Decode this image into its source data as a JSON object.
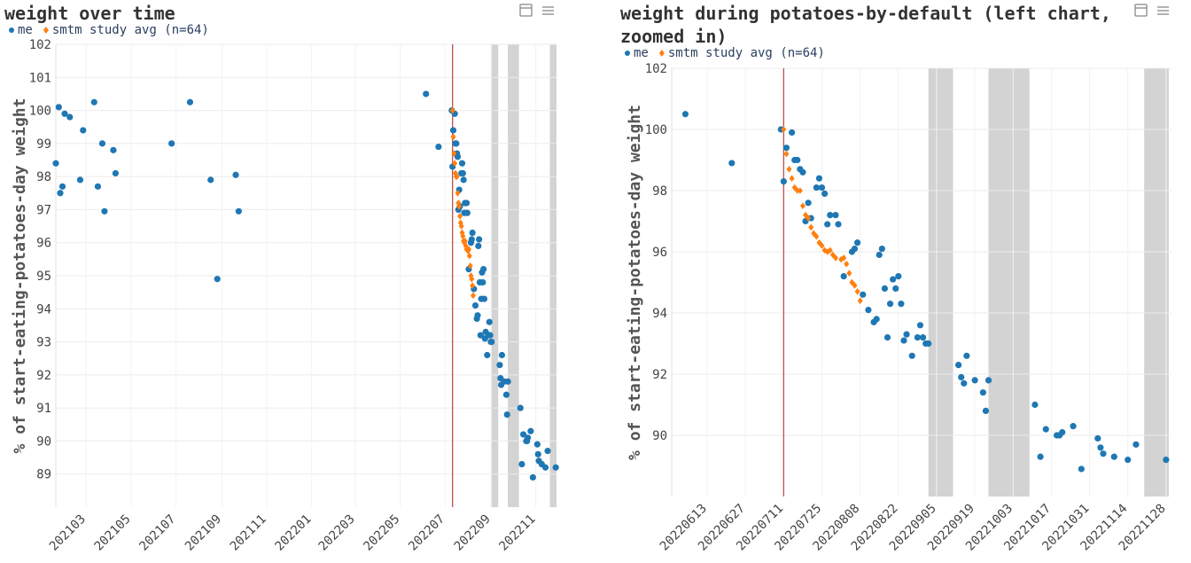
{
  "chart_data": [
    {
      "type": "scatter",
      "title": "weight over time",
      "y_label": "% of start-eating-potatoes-day weight",
      "xlim": [
        "2021-01-19",
        "2022-11-29"
      ],
      "xticks": [
        {
          "value": "2021-03-01",
          "label": "202103"
        },
        {
          "value": "2021-05-01",
          "label": "202105"
        },
        {
          "value": "2021-07-01",
          "label": "202107"
        },
        {
          "value": "2021-09-01",
          "label": "202109"
        },
        {
          "value": "2021-11-01",
          "label": "202111"
        },
        {
          "value": "2022-01-01",
          "label": "202201"
        },
        {
          "value": "2022-03-01",
          "label": "202203"
        },
        {
          "value": "2022-05-01",
          "label": "202205"
        },
        {
          "value": "2022-07-01",
          "label": "202207"
        },
        {
          "value": "2022-09-01",
          "label": "202209"
        },
        {
          "value": "2022-11-01",
          "label": "202211"
        }
      ],
      "ylim": [
        88,
        102
      ],
      "yticks": [
        89,
        90,
        91,
        92,
        93,
        94,
        95,
        96,
        97,
        98,
        99,
        100,
        101,
        102
      ],
      "grid": true,
      "vline": "2022-07-11",
      "vline_color": "#c0504d",
      "shade_color": "#d3d3d3",
      "shaded_ranges": [
        [
          "2022-09-02",
          "2022-09-11"
        ],
        [
          "2022-09-24",
          "2022-10-09"
        ],
        [
          "2022-11-20",
          "2022-11-29"
        ]
      ],
      "series": [
        {
          "name": "me",
          "color": "#1f77b4",
          "marker": "circle",
          "x": [
            "2021-01-19",
            "2021-01-23",
            "2021-01-25",
            "2021-01-28",
            "2021-01-31",
            "2021-02-07",
            "2021-02-21",
            "2021-02-25",
            "2021-03-12",
            "2021-03-17",
            "2021-03-23",
            "2021-03-26",
            "2021-04-07",
            "2021-04-10",
            "2021-06-25",
            "2021-07-20",
            "2021-08-17",
            "2021-08-26",
            "2021-09-20",
            "2021-09-24",
            "2022-06-05",
            "2022-06-22",
            "2022-07-10",
            "2022-07-11",
            "2022-07-12",
            "2022-07-14",
            "2022-07-15",
            "2022-07-16",
            "2022-07-17",
            "2022-07-18",
            "2022-07-19",
            "2022-07-20",
            "2022-07-21",
            "2022-07-23",
            "2022-07-24",
            "2022-07-25",
            "2022-07-26",
            "2022-07-27",
            "2022-07-28",
            "2022-07-30",
            "2022-07-31",
            "2022-08-02",
            "2022-08-05",
            "2022-08-06",
            "2022-08-07",
            "2022-08-09",
            "2022-08-11",
            "2022-08-13",
            "2022-08-14",
            "2022-08-15",
            "2022-08-16",
            "2022-08-17",
            "2022-08-18",
            "2022-08-19",
            "2022-08-20",
            "2022-08-21",
            "2022-08-22",
            "2022-08-23",
            "2022-08-24",
            "2022-08-25",
            "2022-08-27",
            "2022-08-29",
            "2022-08-30",
            "2022-08-31",
            "2022-09-01",
            "2022-09-02",
            "2022-09-13",
            "2022-09-14",
            "2022-09-15",
            "2022-09-16",
            "2022-09-19",
            "2022-09-22",
            "2022-09-23",
            "2022-09-24",
            "2022-10-11",
            "2022-10-13",
            "2022-10-15",
            "2022-10-19",
            "2022-10-20",
            "2022-10-21",
            "2022-10-25",
            "2022-10-28",
            "2022-11-03",
            "2022-11-04",
            "2022-11-05",
            "2022-11-09",
            "2022-11-14",
            "2022-11-17",
            "2022-11-28"
          ],
          "values": [
            98.4,
            100.1,
            97.5,
            97.7,
            99.9,
            99.8,
            97.9,
            99.4,
            100.25,
            97.7,
            99.0,
            96.95,
            98.8,
            98.1,
            99.0,
            100.25,
            97.9,
            94.9,
            98.05,
            96.95,
            100.5,
            98.9,
            100.0,
            98.3,
            99.4,
            99.9,
            99.0,
            99.0,
            98.7,
            98.6,
            97.0,
            97.6,
            97.1,
            98.1,
            98.4,
            98.1,
            97.9,
            96.9,
            97.2,
            97.2,
            96.9,
            95.2,
            96.0,
            96.1,
            96.3,
            94.6,
            94.1,
            93.7,
            93.8,
            95.9,
            96.1,
            94.8,
            93.2,
            94.3,
            95.1,
            94.8,
            95.2,
            94.3,
            93.1,
            93.3,
            92.6,
            93.2,
            93.6,
            93.2,
            93.0,
            93.0,
            92.3,
            91.9,
            91.7,
            92.6,
            91.8,
            91.4,
            90.8,
            91.8,
            91.0,
            89.3,
            90.2,
            90.0,
            90.0,
            90.1,
            90.3,
            88.9,
            89.9,
            89.6,
            89.4,
            89.3,
            89.2,
            89.7,
            89.2
          ]
        },
        {
          "name": "smtm study avg (n=64)",
          "color": "#ff7f0e",
          "marker": "diamond",
          "x": [
            "2022-07-11",
            "2022-07-12",
            "2022-07-13",
            "2022-07-14",
            "2022-07-15",
            "2022-07-16",
            "2022-07-17",
            "2022-07-18",
            "2022-07-19",
            "2022-07-20",
            "2022-07-21",
            "2022-07-22",
            "2022-07-23",
            "2022-07-24",
            "2022-07-25",
            "2022-07-26",
            "2022-07-27",
            "2022-07-28",
            "2022-07-29",
            "2022-07-30",
            "2022-08-01",
            "2022-08-02",
            "2022-08-03",
            "2022-08-04",
            "2022-08-05",
            "2022-08-06",
            "2022-08-07",
            "2022-08-08"
          ],
          "values": [
            100.0,
            99.2,
            98.7,
            98.4,
            98.1,
            98.0,
            98.0,
            97.5,
            97.2,
            97.1,
            96.8,
            96.6,
            96.5,
            96.3,
            96.2,
            96.05,
            96.0,
            96.05,
            95.9,
            95.8,
            95.75,
            95.8,
            95.6,
            95.3,
            95.0,
            94.9,
            94.7,
            94.4
          ]
        }
      ]
    },
    {
      "type": "scatter",
      "title": "weight during potatoes-by-default (left chart, zoomed in)",
      "y_label": "% of start-eating-potatoes-day weight",
      "xlim": [
        "2022-05-31",
        "2022-11-30"
      ],
      "xticks": [
        {
          "value": "2022-06-13",
          "label": "20220613"
        },
        {
          "value": "2022-06-27",
          "label": "20220627"
        },
        {
          "value": "2022-07-11",
          "label": "20220711"
        },
        {
          "value": "2022-07-25",
          "label": "20220725"
        },
        {
          "value": "2022-08-08",
          "label": "20220808"
        },
        {
          "value": "2022-08-22",
          "label": "20220822"
        },
        {
          "value": "2022-09-05",
          "label": "20220905"
        },
        {
          "value": "2022-09-19",
          "label": "20220919"
        },
        {
          "value": "2022-10-03",
          "label": "20221003"
        },
        {
          "value": "2022-10-17",
          "label": "20221017"
        },
        {
          "value": "2022-10-31",
          "label": "20221031"
        },
        {
          "value": "2022-11-14",
          "label": "20221114"
        },
        {
          "value": "2022-11-28",
          "label": "20221128"
        }
      ],
      "ylim": [
        88,
        102
      ],
      "yticks": [
        90,
        92,
        94,
        96,
        98,
        100,
        102
      ],
      "grid": true,
      "vline": "2022-07-11",
      "vline_color": "#c0504d",
      "shade_color": "#d3d3d3",
      "shaded_ranges": [
        [
          "2022-09-02",
          "2022-09-11"
        ],
        [
          "2022-09-24",
          "2022-10-09"
        ],
        [
          "2022-11-20",
          "2022-11-29"
        ]
      ],
      "series": [
        {
          "name": "me",
          "color": "#1f77b4",
          "marker": "circle",
          "x": [
            "2022-06-05",
            "2022-06-22",
            "2022-07-10",
            "2022-07-11",
            "2022-07-12",
            "2022-07-14",
            "2022-07-15",
            "2022-07-16",
            "2022-07-17",
            "2022-07-18",
            "2022-07-19",
            "2022-07-20",
            "2022-07-21",
            "2022-07-23",
            "2022-07-24",
            "2022-07-25",
            "2022-07-26",
            "2022-07-27",
            "2022-07-28",
            "2022-07-30",
            "2022-07-31",
            "2022-08-02",
            "2022-08-05",
            "2022-08-06",
            "2022-08-07",
            "2022-08-09",
            "2022-08-11",
            "2022-08-13",
            "2022-08-14",
            "2022-08-15",
            "2022-08-16",
            "2022-08-17",
            "2022-08-18",
            "2022-08-19",
            "2022-08-20",
            "2022-08-21",
            "2022-08-22",
            "2022-08-23",
            "2022-08-24",
            "2022-08-25",
            "2022-08-27",
            "2022-08-29",
            "2022-08-30",
            "2022-08-31",
            "2022-09-01",
            "2022-09-02",
            "2022-09-13",
            "2022-09-14",
            "2022-09-15",
            "2022-09-16",
            "2022-09-19",
            "2022-09-22",
            "2022-09-23",
            "2022-09-24",
            "2022-10-11",
            "2022-10-13",
            "2022-10-15",
            "2022-10-19",
            "2022-10-20",
            "2022-10-21",
            "2022-10-25",
            "2022-10-28",
            "2022-11-03",
            "2022-11-04",
            "2022-11-05",
            "2022-11-09",
            "2022-11-14",
            "2022-11-17",
            "2022-11-28"
          ],
          "values": [
            100.5,
            98.9,
            100.0,
            98.3,
            99.4,
            99.9,
            99.0,
            99.0,
            98.7,
            98.6,
            97.0,
            97.6,
            97.1,
            98.1,
            98.4,
            98.1,
            97.9,
            96.9,
            97.2,
            97.2,
            96.9,
            95.2,
            96.0,
            96.1,
            96.3,
            94.6,
            94.1,
            93.7,
            93.8,
            95.9,
            96.1,
            94.8,
            93.2,
            94.3,
            95.1,
            94.8,
            95.2,
            94.3,
            93.1,
            93.3,
            92.6,
            93.2,
            93.6,
            93.2,
            93.0,
            93.0,
            92.3,
            91.9,
            91.7,
            92.6,
            91.8,
            91.4,
            90.8,
            91.8,
            91.0,
            89.3,
            90.2,
            90.0,
            90.0,
            90.1,
            90.3,
            88.9,
            89.9,
            89.6,
            89.4,
            89.3,
            89.2,
            89.7,
            89.2
          ]
        },
        {
          "name": "smtm study avg (n=64)",
          "color": "#ff7f0e",
          "marker": "diamond",
          "x": [
            "2022-07-11",
            "2022-07-12",
            "2022-07-13",
            "2022-07-14",
            "2022-07-15",
            "2022-07-16",
            "2022-07-17",
            "2022-07-18",
            "2022-07-19",
            "2022-07-20",
            "2022-07-21",
            "2022-07-22",
            "2022-07-23",
            "2022-07-24",
            "2022-07-25",
            "2022-07-26",
            "2022-07-27",
            "2022-07-28",
            "2022-07-29",
            "2022-07-30",
            "2022-08-01",
            "2022-08-02",
            "2022-08-03",
            "2022-08-04",
            "2022-08-05",
            "2022-08-06",
            "2022-08-07",
            "2022-08-08"
          ],
          "values": [
            100.0,
            99.2,
            98.7,
            98.4,
            98.1,
            98.0,
            98.0,
            97.5,
            97.2,
            97.1,
            96.8,
            96.6,
            96.5,
            96.3,
            96.2,
            96.05,
            96.0,
            96.05,
            95.9,
            95.8,
            95.75,
            95.8,
            95.6,
            95.3,
            95.0,
            94.9,
            94.7,
            94.4
          ]
        }
      ]
    }
  ]
}
